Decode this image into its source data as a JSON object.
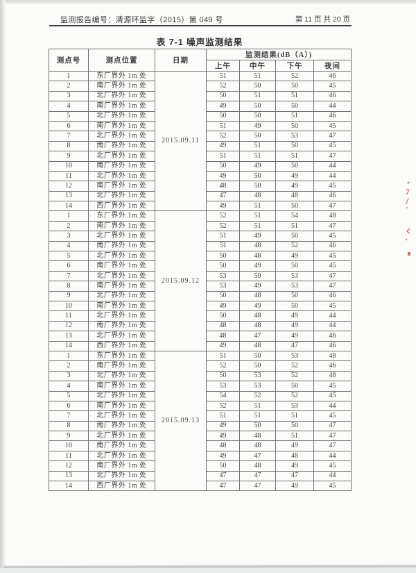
{
  "page": {
    "header": {
      "report_no": "监测报告编号：清源环监字（2015）第 049 号",
      "page_info": "第 11 页 共 20 页"
    },
    "title": "表 7-1  噪声监测结果"
  },
  "table": {
    "col_point_no": "测点号",
    "col_location": "测点位置",
    "col_date": "日期",
    "col_result": "监测结果(dB（A）)",
    "sub_columns": [
      "上午",
      "中午",
      "下午",
      "夜间"
    ],
    "groups": [
      {
        "date": "2015.09.11",
        "rows": [
          [
            "1",
            "东厂界外 1m 处",
            "51",
            "51",
            "52",
            "46"
          ],
          [
            "2",
            "南厂界外 1m 处",
            "52",
            "50",
            "50",
            "45"
          ],
          [
            "3",
            "北厂界外 1m 处",
            "50",
            "51",
            "51",
            "46"
          ],
          [
            "4",
            "南厂界外 1m 处",
            "49",
            "50",
            "50",
            "44"
          ],
          [
            "5",
            "北厂界外 1m 处",
            "50",
            "50",
            "51",
            "46"
          ],
          [
            "6",
            "南厂界外 1m 处",
            "51",
            "49",
            "50",
            "45"
          ],
          [
            "7",
            "北厂界外 1m 处",
            "52",
            "50",
            "53",
            "47"
          ],
          [
            "8",
            "南厂界外 1m 处",
            "49",
            "51",
            "50",
            "45"
          ],
          [
            "9",
            "北厂界外 1m 处",
            "51",
            "51",
            "51",
            "47"
          ],
          [
            "10",
            "南厂界外 1m 处",
            "50",
            "49",
            "50",
            "44"
          ],
          [
            "11",
            "北厂界外 1m 处",
            "49",
            "50",
            "49",
            "44"
          ],
          [
            "12",
            "南厂界外 1m 处",
            "48",
            "50",
            "49",
            "45"
          ],
          [
            "13",
            "北厂界外 1m 处",
            "47",
            "48",
            "48",
            "46"
          ],
          [
            "14",
            "西厂界外 1m 处",
            "49",
            "51",
            "50",
            "47"
          ]
        ]
      },
      {
        "date": "2015.09.12",
        "rows": [
          [
            "1",
            "东厂界外 1m 处",
            "52",
            "51",
            "54",
            "48"
          ],
          [
            "2",
            "南厂界外 1m 处",
            "52",
            "51",
            "51",
            "47"
          ],
          [
            "3",
            "北厂界外 1m 处",
            "51",
            "49",
            "50",
            "45"
          ],
          [
            "4",
            "南厂界外 1m 处",
            "51",
            "48",
            "52",
            "46"
          ],
          [
            "5",
            "北厂界外 1m 处",
            "50",
            "48",
            "49",
            "45"
          ],
          [
            "6",
            "南厂界外 1m 处",
            "50",
            "49",
            "50",
            "45"
          ],
          [
            "7",
            "北厂界外 1m 处",
            "53",
            "50",
            "53",
            "47"
          ],
          [
            "8",
            "南厂界外 1m 处",
            "53",
            "49",
            "53",
            "47"
          ],
          [
            "9",
            "北厂界外 1m 处",
            "50",
            "48",
            "50",
            "46"
          ],
          [
            "10",
            "南厂界外 1m 处",
            "49",
            "49",
            "50",
            "45"
          ],
          [
            "11",
            "北厂界外 1m 处",
            "50",
            "48",
            "49",
            "44"
          ],
          [
            "12",
            "南厂界外 1m 处",
            "48",
            "48",
            "49",
            "44"
          ],
          [
            "13",
            "北厂界外 1m 处",
            "48",
            "47",
            "49",
            "46"
          ],
          [
            "14",
            "西厂界外 1m 处",
            "49",
            "48",
            "47",
            "46"
          ]
        ]
      },
      {
        "date": "2015.09.13",
        "rows": [
          [
            "1",
            "东厂界外 1m 处",
            "51",
            "50",
            "53",
            "48"
          ],
          [
            "2",
            "南厂界外 1m 处",
            "52",
            "50",
            "52",
            "46"
          ],
          [
            "3",
            "北厂界外 1m 处",
            "50",
            "53",
            "52",
            "48"
          ],
          [
            "4",
            "南厂界外 1m 处",
            "53",
            "53",
            "50",
            "45"
          ],
          [
            "5",
            "北厂界外 1m 处",
            "54",
            "52",
            "52",
            "45"
          ],
          [
            "6",
            "南厂界外 1m 处",
            "52",
            "51",
            "53",
            "44"
          ],
          [
            "7",
            "北厂界外 1m 处",
            "51",
            "51",
            "51",
            "45"
          ],
          [
            "8",
            "南厂界外 1m 处",
            "49",
            "50",
            "50",
            "47"
          ],
          [
            "9",
            "北厂界外 1m 处",
            "49",
            "48",
            "51",
            "47"
          ],
          [
            "10",
            "南厂界外 1m 处",
            "48",
            "48",
            "49",
            "47"
          ],
          [
            "11",
            "北厂界外 1m 处",
            "49",
            "47",
            "48",
            "44"
          ],
          [
            "12",
            "南厂界外 1m 处",
            "50",
            "48",
            "49",
            "45"
          ],
          [
            "13",
            "北厂界外 1m 处",
            "47",
            "47",
            "47",
            "44"
          ],
          [
            "14",
            "西厂界外 1m 处",
            "47",
            "47",
            "49",
            "45"
          ]
        ]
      }
    ]
  },
  "colors": {
    "ink": "#3f3f3f",
    "table_line": "#6e6e6e",
    "stray_mark": "#b8463e"
  }
}
